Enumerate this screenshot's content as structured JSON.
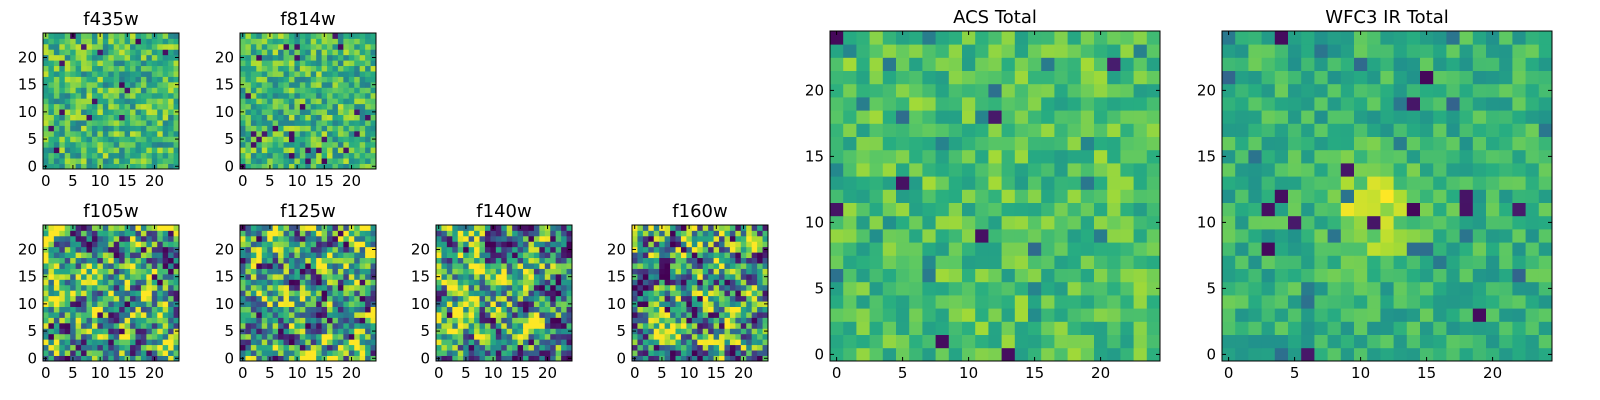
{
  "chart_data": [
    {
      "type": "heatmap",
      "title": "f435w",
      "grid_size": 25,
      "xlim": [
        -0.5,
        24.5
      ],
      "ylim": [
        -0.5,
        24.5
      ],
      "xticks": [
        0,
        5,
        10,
        15,
        20
      ],
      "yticks": [
        0,
        5,
        10,
        15,
        20
      ],
      "colormap": "viridis",
      "texture": "fine",
      "seed": 11
    },
    {
      "type": "heatmap",
      "title": "f814w",
      "grid_size": 25,
      "xlim": [
        -0.5,
        24.5
      ],
      "ylim": [
        -0.5,
        24.5
      ],
      "xticks": [
        0,
        5,
        10,
        15,
        20
      ],
      "yticks": [
        0,
        5,
        10,
        15,
        20
      ],
      "colormap": "viridis",
      "texture": "fine",
      "seed": 23
    },
    {
      "type": "heatmap",
      "title": "f105w",
      "grid_size": 25,
      "xlim": [
        -0.5,
        24.5
      ],
      "ylim": [
        -0.5,
        24.5
      ],
      "xticks": [
        0,
        5,
        10,
        15,
        20
      ],
      "yticks": [
        0,
        5,
        10,
        15,
        20
      ],
      "colormap": "viridis",
      "texture": "blobby",
      "seed": 37
    },
    {
      "type": "heatmap",
      "title": "f125w",
      "grid_size": 25,
      "xlim": [
        -0.5,
        24.5
      ],
      "ylim": [
        -0.5,
        24.5
      ],
      "xticks": [
        0,
        5,
        10,
        15,
        20
      ],
      "yticks": [
        0,
        5,
        10,
        15,
        20
      ],
      "colormap": "viridis",
      "texture": "blobby",
      "seed": 41
    },
    {
      "type": "heatmap",
      "title": "f140w",
      "grid_size": 25,
      "xlim": [
        -0.5,
        24.5
      ],
      "ylim": [
        -0.5,
        24.5
      ],
      "xticks": [
        0,
        5,
        10,
        15,
        20
      ],
      "yticks": [
        0,
        5,
        10,
        15,
        20
      ],
      "colormap": "viridis",
      "texture": "blobby",
      "seed": 53
    },
    {
      "type": "heatmap",
      "title": "f160w",
      "grid_size": 25,
      "xlim": [
        -0.5,
        24.5
      ],
      "ylim": [
        -0.5,
        24.5
      ],
      "xticks": [
        0,
        5,
        10,
        15,
        20
      ],
      "yticks": [
        0,
        5,
        10,
        15,
        20
      ],
      "colormap": "viridis",
      "texture": "blobby",
      "seed": 67
    },
    {
      "type": "heatmap",
      "title": "ACS Total",
      "grid_size": 25,
      "xlim": [
        -0.5,
        24.5
      ],
      "ylim": [
        -0.5,
        24.5
      ],
      "xticks": [
        0,
        5,
        10,
        15,
        20
      ],
      "yticks": [
        0,
        5,
        10,
        15,
        20
      ],
      "colormap": "viridis",
      "texture": "smooth",
      "seed": 79
    },
    {
      "type": "heatmap",
      "title": "WFC3 IR Total",
      "grid_size": 25,
      "xlim": [
        -0.5,
        24.5
      ],
      "ylim": [
        -0.5,
        24.5
      ],
      "xticks": [
        0,
        5,
        10,
        15,
        20
      ],
      "yticks": [
        0,
        5,
        10,
        15,
        20
      ],
      "colormap": "viridis",
      "texture": "peak",
      "peak_center": [
        11,
        11
      ],
      "seed": 97
    }
  ]
}
